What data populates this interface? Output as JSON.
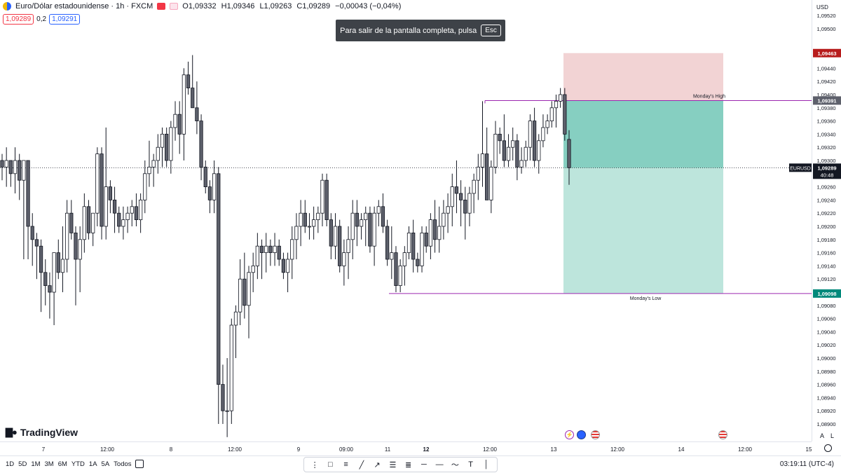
{
  "legend": {
    "symbol": "Euro/Dólar estadounidense · 1h · FXCM",
    "open": "O1,09332",
    "high": "H1,09346",
    "low": "L1,09263",
    "close": "C1,09289",
    "change": "−0,00043 (−0,04%)"
  },
  "quote": {
    "sell": "1,09289",
    "spread": "0,2",
    "buy": "1,09291"
  },
  "toast": {
    "text": "Para salir de la pantalla completa, pulsa",
    "key": "Esc"
  },
  "brand": "TradingView",
  "axis_currency": "USD",
  "price_ticks": [
    "1,09520",
    "1,09500",
    "1,09440",
    "1,09420",
    "1,09400",
    "1,09380",
    "1,09360",
    "1,09340",
    "1,09320",
    "1,09300",
    "1,09260",
    "1,09240",
    "1,09220",
    "1,09200",
    "1,09180",
    "1,09160",
    "1,09140",
    "1,09120",
    "1,09080",
    "1,09060",
    "1,09040",
    "1,09020",
    "1,09000",
    "1,08980",
    "1,08960",
    "1,08940",
    "1,08920",
    "1,08900"
  ],
  "price_labels": {
    "stop": "1,09463",
    "entry": "1,09391",
    "current": "1,09289",
    "countdown": "40:48",
    "symbol": "EURUSD",
    "target": "1,09098"
  },
  "lines": {
    "high_label": "Monday's High",
    "low_label": "Monday's Low"
  },
  "time_ticks": [
    "7",
    "12:00",
    "8",
    "12:00",
    "9",
    "09:00",
    "11",
    "12",
    "12:00",
    "13",
    "12:00",
    "14",
    "12:00",
    "15"
  ],
  "axis_buttons": {
    "auto": "A",
    "log": "L"
  },
  "ranges": [
    "1D",
    "5D",
    "1M",
    "3M",
    "6M",
    "YTD",
    "1A",
    "5A",
    "Todos"
  ],
  "clock": "03:19:11 (UTC-4)",
  "colors": {
    "bull_body": "#ffffff",
    "bear_body": "#5d606b",
    "wick": "#131722",
    "stop_zone": "#f2d3d4",
    "target_zone": "#bde5dc",
    "target_zone_dark": "#86cfc1",
    "level_line": "#9c27b0",
    "stop_label": "#b71c1c",
    "target_label": "#00897b",
    "current_label": "#131722"
  },
  "candles": [
    [
      1.093,
      1.0931,
      1.0927,
      1.0929
    ],
    [
      1.0929,
      1.0932,
      1.0926,
      1.093
    ],
    [
      1.093,
      1.093,
      1.0926,
      1.0928
    ],
    [
      1.0928,
      1.0932,
      1.0925,
      1.093
    ],
    [
      1.093,
      1.0931,
      1.0924,
      1.0927
    ],
    [
      1.0927,
      1.093,
      1.0915,
      1.093
    ],
    [
      1.093,
      1.093,
      1.0915,
      1.092
    ],
    [
      1.092,
      1.0922,
      1.0914,
      1.0918
    ],
    [
      1.0918,
      1.0919,
      1.0912,
      1.0917
    ],
    [
      1.0917,
      1.0918,
      1.0907,
      1.0913
    ],
    [
      1.0913,
      1.0915,
      1.0908,
      1.0911
    ],
    [
      1.0911,
      1.0913,
      1.0906,
      1.091
    ],
    [
      1.091,
      1.0916,
      1.0905,
      1.0916
    ],
    [
      1.0916,
      1.0918,
      1.0912,
      1.0913
    ],
    [
      1.0913,
      1.092,
      1.091,
      1.0915
    ],
    [
      1.0915,
      1.0924,
      1.0913,
      1.0922
    ],
    [
      1.0922,
      1.0924,
      1.0918,
      1.0919
    ],
    [
      1.0919,
      1.092,
      1.0908,
      1.0915
    ],
    [
      1.0915,
      1.092,
      1.091,
      1.0918
    ],
    [
      1.0918,
      1.0925,
      1.0916,
      1.0923
    ],
    [
      1.0923,
      1.0924,
      1.0918,
      1.0919
    ],
    [
      1.0919,
      1.0922,
      1.0917,
      1.0922
    ],
    [
      1.0922,
      1.0932,
      1.092,
      1.0931
    ],
    [
      1.0931,
      1.0932,
      1.0918,
      1.092
    ],
    [
      1.092,
      1.0935,
      1.0918,
      1.0926
    ],
    [
      1.0926,
      1.0927,
      1.0922,
      1.0924
    ],
    [
      1.0924,
      1.0926,
      1.0919,
      1.0922
    ],
    [
      1.0922,
      1.0923,
      1.0919,
      1.092
    ],
    [
      1.092,
      1.0923,
      1.0918,
      1.0921
    ],
    [
      1.0921,
      1.0923,
      1.0919,
      1.0922
    ],
    [
      1.0922,
      1.0924,
      1.092,
      1.0923
    ],
    [
      1.0923,
      1.0925,
      1.092,
      1.0921
    ],
    [
      1.0921,
      1.0925,
      1.0919,
      1.0924
    ],
    [
      1.0924,
      1.093,
      1.0922,
      1.0928
    ],
    [
      1.0928,
      1.0933,
      1.0926,
      1.0929
    ],
    [
      1.0929,
      1.0931,
      1.0926,
      1.093
    ],
    [
      1.093,
      1.0934,
      1.0928,
      1.0932
    ],
    [
      1.0932,
      1.0935,
      1.0929,
      1.0934
    ],
    [
      1.0934,
      1.0935,
      1.0929,
      1.093
    ],
    [
      1.093,
      1.0936,
      1.0928,
      1.0935
    ],
    [
      1.0935,
      1.0939,
      1.0933,
      1.0937
    ],
    [
      1.0937,
      1.0939,
      1.0931,
      1.0934
    ],
    [
      1.0934,
      1.0944,
      1.093,
      1.0943
    ],
    [
      1.0943,
      1.0945,
      1.094,
      1.0941
    ],
    [
      1.0941,
      1.0946,
      1.0938,
      1.0938
    ],
    [
      1.0938,
      1.0942,
      1.0934,
      1.0936
    ],
    [
      1.0936,
      1.0937,
      1.0927,
      1.0929
    ],
    [
      1.0929,
      1.093,
      1.0925,
      1.0926
    ],
    [
      1.0926,
      1.0927,
      1.0922,
      1.0924
    ],
    [
      1.0924,
      1.093,
      1.0922,
      1.0928
    ],
    [
      1.0928,
      1.0929,
      1.089,
      1.0896
    ],
    [
      1.0896,
      1.0899,
      1.089,
      1.0892
    ],
    [
      1.0892,
      1.09,
      1.0888,
      1.0892
    ],
    [
      1.0892,
      1.0906,
      1.089,
      1.0905
    ],
    [
      1.0905,
      1.0908,
      1.09,
      1.0907
    ],
    [
      1.0907,
      1.0915,
      1.0905,
      1.0912
    ],
    [
      1.0912,
      1.0916,
      1.0906,
      1.0908
    ],
    [
      1.0908,
      1.0914,
      1.0903,
      1.0913
    ],
    [
      1.0913,
      1.0916,
      1.091,
      1.0914
    ],
    [
      1.0914,
      1.0919,
      1.0912,
      1.0917
    ],
    [
      1.0917,
      1.0918,
      1.0912,
      1.0916
    ],
    [
      1.0916,
      1.0919,
      1.0913,
      1.0917
    ],
    [
      1.0917,
      1.0918,
      1.0914,
      1.0916
    ],
    [
      1.0916,
      1.0919,
      1.0914,
      1.0917
    ],
    [
      1.0917,
      1.0918,
      1.0914,
      1.0915
    ],
    [
      1.0915,
      1.0916,
      1.0912,
      1.0913
    ],
    [
      1.0913,
      1.0916,
      1.091,
      1.0915
    ],
    [
      1.0915,
      1.092,
      1.0912,
      1.0918
    ],
    [
      1.0918,
      1.0922,
      1.0915,
      1.092
    ],
    [
      1.092,
      1.0924,
      1.0917,
      1.0922
    ],
    [
      1.0922,
      1.0924,
      1.0919,
      1.092
    ],
    [
      1.092,
      1.0922,
      1.0918,
      1.092
    ],
    [
      1.092,
      1.0923,
      1.0918,
      1.0921
    ],
    [
      1.0921,
      1.0923,
      1.0919,
      1.0922
    ],
    [
      1.0922,
      1.0928,
      1.092,
      1.0927
    ],
    [
      1.0927,
      1.0928,
      1.092,
      1.0921
    ],
    [
      1.0921,
      1.0922,
      1.0915,
      1.0917
    ],
    [
      1.0917,
      1.0922,
      1.0915,
      1.092
    ],
    [
      1.092,
      1.0921,
      1.0913,
      1.0914
    ],
    [
      1.0914,
      1.0918,
      1.0911,
      1.0916
    ],
    [
      1.0916,
      1.092,
      1.0912,
      1.0918
    ],
    [
      1.0918,
      1.0924,
      1.0915,
      1.0922
    ],
    [
      1.0922,
      1.0924,
      1.0917,
      1.092
    ],
    [
      1.092,
      1.0922,
      1.0918,
      1.0921
    ],
    [
      1.0921,
      1.0923,
      1.0917,
      1.0922
    ],
    [
      1.0922,
      1.0923,
      1.0916,
      1.0917
    ],
    [
      1.0917,
      1.0923,
      1.0914,
      1.0922
    ],
    [
      1.0922,
      1.0924,
      1.092,
      1.0923
    ],
    [
      1.0923,
      1.0925,
      1.0919,
      1.092
    ],
    [
      1.092,
      1.0921,
      1.0914,
      1.0915
    ],
    [
      1.0915,
      1.092,
      1.0912,
      1.0916
    ],
    [
      1.0916,
      1.0917,
      1.091,
      1.0911
    ],
    [
      1.0911,
      1.0915,
      1.091,
      1.0914
    ],
    [
      1.0914,
      1.0917,
      1.0911,
      1.0916
    ],
    [
      1.0916,
      1.092,
      1.0915,
      1.0919
    ],
    [
      1.0919,
      1.0921,
      1.0913,
      1.0915
    ],
    [
      1.0915,
      1.0916,
      1.0913,
      1.0914
    ],
    [
      1.0914,
      1.092,
      1.0913,
      1.0919
    ],
    [
      1.0919,
      1.092,
      1.0916,
      1.0917
    ],
    [
      1.0917,
      1.0922,
      1.0915,
      1.0921
    ],
    [
      1.0921,
      1.0924,
      1.0916,
      1.0918
    ],
    [
      1.0918,
      1.0923,
      1.0916,
      1.092
    ],
    [
      1.092,
      1.0924,
      1.0918,
      1.0922
    ],
    [
      1.0922,
      1.0925,
      1.0919,
      1.0923
    ],
    [
      1.0923,
      1.0928,
      1.092,
      1.0926
    ],
    [
      1.0926,
      1.093,
      1.0922,
      1.0925
    ],
    [
      1.0925,
      1.0927,
      1.092,
      1.0924
    ],
    [
      1.0924,
      1.0926,
      1.0918,
      1.0922
    ],
    [
      1.0922,
      1.0926,
      1.092,
      1.0925
    ],
    [
      1.0925,
      1.0928,
      1.0922,
      1.0927
    ],
    [
      1.0927,
      1.0931,
      1.0924,
      1.0929
    ],
    [
      1.0929,
      1.0939,
      1.0926,
      1.0931
    ],
    [
      1.0931,
      1.0935,
      1.0924,
      1.0924
    ],
    [
      1.0924,
      1.093,
      1.0922,
      1.0929
    ],
    [
      1.0929,
      1.0936,
      1.0928,
      1.0934
    ],
    [
      1.0934,
      1.0935,
      1.0931,
      1.0933
    ],
    [
      1.0933,
      1.0937,
      1.0929,
      1.093
    ],
    [
      1.093,
      1.0934,
      1.0929,
      1.0932
    ],
    [
      1.0932,
      1.0935,
      1.093,
      1.0933
    ],
    [
      1.0933,
      1.0934,
      1.0927,
      1.0929
    ],
    [
      1.0929,
      1.0932,
      1.0928,
      1.093
    ],
    [
      1.093,
      1.0933,
      1.0929,
      1.0932
    ],
    [
      1.0932,
      1.0937,
      1.093,
      1.0936
    ],
    [
      1.0936,
      1.0938,
      1.0929,
      1.093
    ],
    [
      1.093,
      1.0934,
      1.0928,
      1.0933
    ],
    [
      1.0933,
      1.0937,
      1.0932,
      1.0935
    ],
    [
      1.0935,
      1.0937,
      1.0934,
      1.0936
    ],
    [
      1.0936,
      1.0939,
      1.0935,
      1.0938
    ],
    [
      1.0938,
      1.094,
      1.0935,
      1.0939
    ],
    [
      1.0939,
      1.0941,
      1.0938,
      1.094
    ],
    [
      1.094,
      1.0941,
      1.0933,
      1.0934
    ],
    [
      1.09332,
      1.09346,
      1.09263,
      1.09289
    ]
  ]
}
